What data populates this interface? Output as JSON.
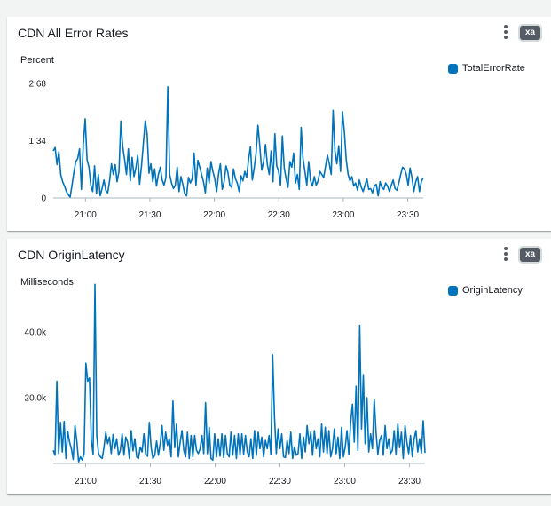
{
  "panels": [
    {
      "title": "CDN All Error Rates",
      "badge": "xa",
      "unit_label": "Percent",
      "legend_label": "TotalErrorRate",
      "color": "#0073bb"
    },
    {
      "title": "CDN OriginLatency",
      "badge": "xa",
      "unit_label": "Milliseconds",
      "legend_label": "OriginLatency",
      "color": "#0073bb"
    }
  ],
  "chart_data": [
    {
      "type": "line",
      "title": "CDN All Error Rates",
      "ylabel": "Percent",
      "xlabel": "",
      "ylim": [
        0,
        2.68
      ],
      "xlim": [
        20.75,
        23.62
      ],
      "x_ticks": [
        "21:00",
        "21:30",
        "22:00",
        "22:30",
        "23:00",
        "23:30"
      ],
      "x_tick_values": [
        21.0,
        21.5,
        22.0,
        22.5,
        23.0,
        23.5
      ],
      "y_ticks": [
        "0",
        "1.34",
        "2.68"
      ],
      "y_tick_values": [
        0,
        1.34,
        2.68
      ],
      "series": [
        {
          "name": "TotalErrorRate",
          "values": [
            1.1,
            1.18,
            0.78,
            1.08,
            0.55,
            0.38,
            0.28,
            0.15,
            0.08,
            0.02,
            0.3,
            0.6,
            0.85,
            0.92,
            1.15,
            0.2,
            1.25,
            1.85,
            0.9,
            0.72,
            0.3,
            0.15,
            0.75,
            0.1,
            0.55,
            0.05,
            0.22,
            0.42,
            0.18,
            0.12,
            0.4,
            0.8,
            0.55,
            0.78,
            0.38,
            0.62,
            1.8,
            1.2,
            0.9,
            0.55,
            1.15,
            0.4,
            0.95,
            0.5,
            0.7,
            1.0,
            0.32,
            0.75,
            1.28,
            1.8,
            1.5,
            0.58,
            0.8,
            0.38,
            0.68,
            0.28,
            0.55,
            0.72,
            0.42,
            0.3,
            0.48,
            2.6,
            0.55,
            0.35,
            0.22,
            0.3,
            0.72,
            0.15,
            0.5,
            0.32,
            0.1,
            0.05,
            0.48,
            0.35,
            0.45,
            1.05,
            0.3,
            0.88,
            0.72,
            0.55,
            0.38,
            0.12,
            0.7,
            0.35,
            0.85,
            0.62,
            0.45,
            0.15,
            0.55,
            0.8,
            0.2,
            0.38,
            0.75,
            0.6,
            0.3,
            0.25,
            0.68,
            0.45,
            0.35,
            0.15,
            0.52,
            0.4,
            0.62,
            0.48,
            0.9,
            1.2,
            0.42,
            0.7,
            1.05,
            1.7,
            1.2,
            0.65,
            0.85,
            1.25,
            0.78,
            0.55,
            1.1,
            0.38,
            1.5,
            0.75,
            0.62,
            0.3,
            1.45,
            0.7,
            0.45,
            0.25,
            0.85,
            0.72,
            1.05,
            0.35,
            0.55,
            0.2,
            1.65,
            0.92,
            0.62,
            0.3,
            0.85,
            0.4,
            0.28,
            0.5,
            0.3,
            0.4,
            0.62,
            0.55,
            0.48,
            0.75,
            1.0,
            0.8,
            0.55,
            2.05,
            1.1,
            0.8,
            1.22,
            0.62,
            2.02,
            1.55,
            0.9,
            0.55,
            0.4,
            0.5,
            0.28,
            0.35,
            0.18,
            0.42,
            0.25,
            0.15,
            0.3,
            0.45,
            0.2,
            0.22,
            0.12,
            0.28,
            0.32,
            0.05,
            0.38,
            0.25,
            0.2,
            0.35,
            0.28,
            0.15,
            0.3,
            0.42,
            0.22,
            0.18,
            0.35,
            0.55,
            0.72,
            0.68,
            0.55,
            0.3,
            0.7,
            0.48,
            0.15,
            0.38,
            0.5,
            0.15,
            0.38,
            0.48
          ]
        }
      ]
    },
    {
      "type": "line",
      "title": "CDN OriginLatency",
      "ylabel": "Milliseconds",
      "xlabel": "",
      "ylim": [
        0,
        50000
      ],
      "xlim": [
        20.75,
        23.62
      ],
      "x_ticks": [
        "21:00",
        "21:30",
        "22:00",
        "22:30",
        "23:00",
        "23:30"
      ],
      "x_tick_values": [
        21.0,
        21.5,
        22.0,
        22.5,
        23.0,
        23.5
      ],
      "y_ticks": [
        "20.0k",
        "40.0k"
      ],
      "y_tick_values": [
        20000,
        40000
      ],
      "series": [
        {
          "name": "OriginLatency",
          "values": [
            4000,
            2500,
            25000,
            3000,
            12500,
            3500,
            12800,
            1500,
            9800,
            6500,
            4500,
            1200,
            11500,
            6800,
            500,
            2000,
            1000,
            3000,
            30500,
            25000,
            26000,
            7000,
            2800,
            54500,
            8500,
            3000,
            2000,
            1500,
            5000,
            9500,
            6000,
            8000,
            3000,
            8800,
            4500,
            7500,
            2500,
            4000,
            9000,
            2500,
            8000,
            6500,
            1500,
            10000,
            3800,
            7500,
            2000,
            1500,
            5000,
            3500,
            9000,
            2800,
            2200,
            12500,
            4800,
            1500,
            2500,
            6800,
            2500,
            6000,
            11500,
            4000,
            9500,
            5500,
            7500,
            2000,
            19000,
            4800,
            12000,
            2000,
            6500,
            10000,
            4000,
            2000,
            9500,
            1500,
            8500,
            2000,
            8500,
            4000,
            3000,
            4500,
            8500,
            3000,
            18500,
            3000,
            11000,
            1500,
            1000,
            9000,
            2000,
            7500,
            2200,
            9000,
            1800,
            8500,
            3000,
            2000,
            9500,
            2500,
            8500,
            1500,
            9000,
            2500,
            9000,
            2800,
            8500,
            3500,
            2000,
            7500,
            1500,
            10000,
            2500,
            9500,
            4500,
            8000,
            2000,
            7000,
            4500,
            8500,
            2800,
            33000,
            14000,
            3000,
            10500,
            4500,
            9000,
            2000,
            1800,
            7000,
            3000,
            9500,
            1500,
            5000,
            2500,
            3000,
            9000,
            1500,
            8000,
            3500,
            11500,
            6000,
            9500,
            2500,
            10000,
            4500,
            7500,
            2000,
            12000,
            3500,
            11000,
            3000,
            10000,
            2000,
            4500,
            10500,
            3000,
            8000,
            1500,
            11000,
            2000,
            5000,
            10000,
            2800,
            12500,
            18000,
            6500,
            23500,
            4000,
            42000,
            10500,
            27000,
            6000,
            20000,
            3500,
            9000,
            4500,
            19500,
            9500,
            2800,
            7000,
            8500,
            2500,
            11500,
            4500,
            7500,
            3000,
            4000,
            10000,
            2800,
            12000,
            4800,
            9500,
            1500,
            11500,
            6500,
            3000,
            8500,
            2000,
            7500,
            10000,
            3500,
            7500,
            3200,
            13000,
            3200
          ]
        }
      ]
    }
  ]
}
